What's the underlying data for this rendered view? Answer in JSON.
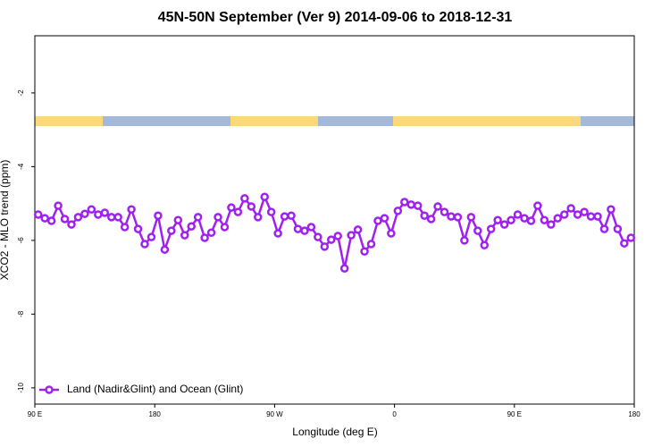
{
  "chart_data": {
    "type": "line",
    "title": "45N-50N September (Ver 9)   2014-09-06 to 2018-12-31",
    "xlabel": "Longitude (deg E)",
    "ylabel": "XCO2 - MLO trend (ppm)",
    "xlim": [
      -270,
      180
    ],
    "ylim": [
      -10.44,
      -0.45
    ],
    "xticks": [
      {
        "value": -270,
        "label": "90 E"
      },
      {
        "value": -180,
        "label": "180"
      },
      {
        "value": -90,
        "label": "90 W"
      },
      0,
      {
        "value": 90,
        "label": "90 E"
      },
      180
    ],
    "yticks": [
      -10,
      -8,
      -6,
      -4,
      -2
    ],
    "legend": "bottom-left",
    "x": [
      -267.5,
      -262.5,
      -257.5,
      -252.5,
      -247.5,
      -242.5,
      -237.5,
      -232.5,
      -227.5,
      -222.5,
      -217.5,
      -212.5,
      -207.5,
      -202.5,
      -197.5,
      -192.5,
      -187.5,
      -182.5,
      -177.5,
      -172.5,
      -167.5,
      -162.5,
      -157.5,
      -152.5,
      -147.5,
      -142.5,
      -137.5,
      -132.5,
      -127.5,
      -122.5,
      -117.5,
      -112.5,
      -107.5,
      -102.5,
      -97.5,
      -92.5,
      -87.5,
      -82.5,
      -77.5,
      -72.5,
      -67.5,
      -62.5,
      -57.5,
      -52.5,
      -47.5,
      -42.5,
      -37.5,
      -32.5,
      -27.5,
      -22.5,
      -17.5,
      -12.5,
      -7.5,
      -2.5,
      2.5,
      7.5,
      12.5,
      17.5,
      22.5,
      27.5,
      32.5,
      37.5,
      42.5,
      47.5,
      52.5,
      57.5,
      62.5,
      67.5,
      72.5,
      77.5,
      82.5,
      87.5,
      92.5,
      97.5,
      102.5,
      107.5,
      112.5,
      117.5,
      122.5,
      127.5,
      132.5,
      137.5,
      142.5,
      147.5,
      152.5,
      157.5,
      162.5,
      167.5,
      172.5,
      177.5
    ],
    "series": [
      {
        "name": "Land (Nadir&Glint) and Ocean (Glint)",
        "color": "#a020f0",
        "values": [
          -5.3,
          -5.4,
          -5.47,
          -5.06,
          -5.42,
          -5.57,
          -5.37,
          -5.28,
          -5.16,
          -5.3,
          -5.25,
          -5.37,
          -5.37,
          -5.64,
          -5.16,
          -5.69,
          -6.1,
          -5.91,
          -5.33,
          -6.25,
          -5.74,
          -5.45,
          -5.86,
          -5.62,
          -5.37,
          -5.93,
          -5.79,
          -5.37,
          -5.64,
          -5.11,
          -5.23,
          -4.86,
          -5.08,
          -5.37,
          -4.82,
          -5.23,
          -5.81,
          -5.35,
          -5.33,
          -5.69,
          -5.74,
          -5.64,
          -5.91,
          -6.17,
          -5.98,
          -5.88,
          -6.76,
          -5.86,
          -5.71,
          -6.3,
          -6.1,
          -5.47,
          -5.4,
          -5.81,
          -5.2,
          -4.96,
          -5.03,
          -5.06,
          -5.33,
          -5.42,
          -5.08,
          -5.23,
          -5.35,
          -5.37,
          -6.0,
          -5.37,
          -5.74,
          -6.13,
          -5.69,
          -5.45,
          -5.57,
          -5.45,
          -5.3,
          -5.4,
          -5.47,
          -5.06,
          -5.45,
          -5.57,
          -5.4,
          -5.3,
          -5.13,
          -5.3,
          -5.23,
          -5.35,
          -5.35,
          -5.69,
          -5.16,
          -5.69,
          -6.08,
          -5.93
        ]
      }
    ]
  }
}
